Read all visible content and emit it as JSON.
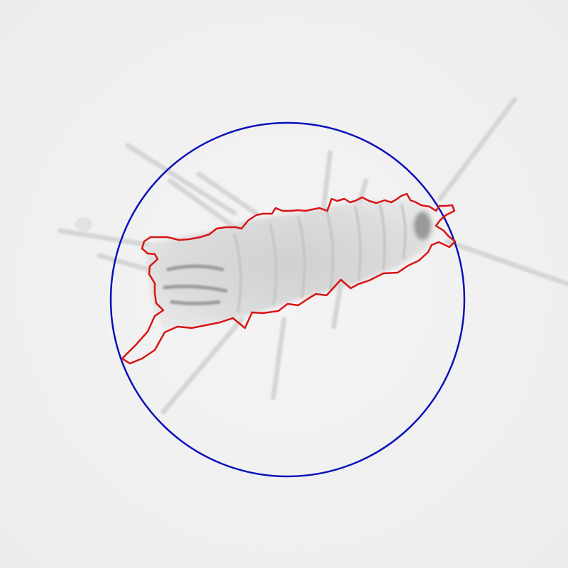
{
  "scene": {
    "subject": "specimen",
    "annotations": [
      {
        "kind": "circle",
        "color": "#0a10b8"
      },
      {
        "kind": "outline",
        "color": "#d81414"
      }
    ],
    "background_color": "#f2f2f2"
  }
}
